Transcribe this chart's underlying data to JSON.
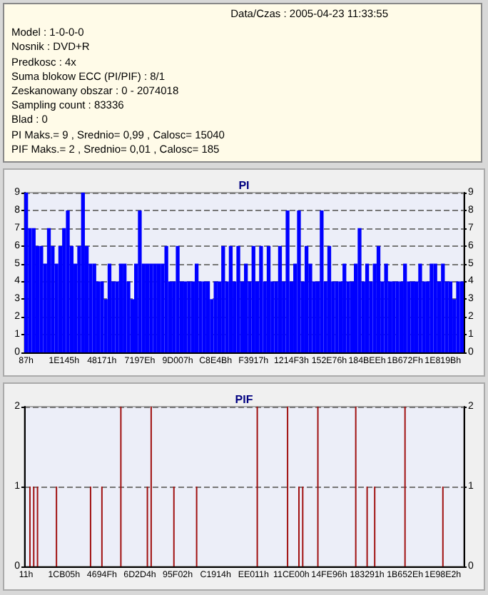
{
  "chart_data": [
    {
      "type": "other",
      "annotations": [
        "Data/Czas : 2005-04-23 11:33:55",
        "Model : 1-0-0-0",
        "Nosnik : DVD+R",
        "Predkosc : 4x",
        "Suma blokow ECC (PI/PIF) : 8/1",
        "Zeskanowany obszar : 0 - 2074018",
        "Sampling count : 83336",
        "Blad : 0",
        "PI Maks.= 9 , Srednio= 0,99 , Calosc= 15040",
        "PIF Maks.= 2 , Srednio= 0,01 , Calosc= 185"
      ]
    },
    {
      "type": "bar",
      "title": "PI",
      "color": "#0000ff",
      "categories": [
        "87h",
        null,
        null,
        null,
        null,
        null,
        null,
        null,
        null,
        null,
        "1E145h",
        null,
        null,
        null,
        null,
        null,
        null,
        null,
        null,
        null,
        "48171h",
        null,
        null,
        null,
        null,
        null,
        null,
        null,
        null,
        null,
        "7197Eh",
        null,
        null,
        null,
        null,
        null,
        null,
        null,
        null,
        null,
        "9D007h",
        null,
        null,
        null,
        null,
        null,
        null,
        null,
        null,
        null,
        "C8E4Bh",
        null,
        null,
        null,
        null,
        null,
        null,
        null,
        null,
        null,
        "F3917h",
        null,
        null,
        null,
        null,
        null,
        null,
        null,
        null,
        null,
        "1214F3h",
        null,
        null,
        null,
        null,
        null,
        null,
        null,
        null,
        null,
        "152E76h",
        null,
        null,
        null,
        null,
        null,
        null,
        null,
        null,
        null,
        "184BEEh",
        null,
        null,
        null,
        null,
        null,
        null,
        null,
        null,
        null,
        "1B672Fh",
        null,
        null,
        null,
        null,
        null,
        null,
        null,
        null,
        null,
        "1E819Bh",
        null,
        null,
        null,
        null,
        null
      ],
      "values": [
        9,
        7,
        7,
        6,
        6,
        5,
        7,
        6,
        5,
        6,
        7,
        8,
        6,
        5,
        6,
        9,
        6,
        5,
        5,
        4,
        4,
        3,
        5,
        4,
        4,
        5,
        5,
        4,
        3,
        5,
        8,
        5,
        5,
        5,
        5,
        5,
        5,
        6,
        4,
        4,
        6,
        4,
        4,
        4,
        4,
        5,
        4,
        4,
        4,
        3,
        4,
        4,
        6,
        4,
        6,
        4,
        6,
        4,
        5,
        4,
        6,
        4,
        6,
        4,
        6,
        4,
        4,
        6,
        4,
        8,
        4,
        5,
        8,
        4,
        6,
        5,
        4,
        4,
        8,
        4,
        6,
        4,
        4,
        4,
        5,
        4,
        4,
        5,
        7,
        4,
        5,
        4,
        5,
        6,
        4,
        5,
        4,
        4,
        4,
        4,
        5,
        4,
        4,
        4,
        5,
        4,
        4,
        5,
        5,
        4,
        5,
        4,
        4,
        3,
        4,
        4
      ],
      "ylim": [
        0,
        9
      ],
      "yticks": [
        0,
        1,
        2,
        3,
        4,
        5,
        6,
        7,
        8,
        9
      ],
      "y2lim": [
        0,
        9
      ],
      "y2ticks": [
        0,
        1,
        2,
        3,
        4,
        5,
        6,
        7,
        8,
        9
      ],
      "grid": "y"
    },
    {
      "type": "bar",
      "title": "PIF",
      "color": "#a01010",
      "categories": [
        "11h",
        null,
        null,
        null,
        null,
        null,
        null,
        null,
        null,
        null,
        "1CB05h",
        null,
        null,
        null,
        null,
        null,
        null,
        null,
        null,
        null,
        "4694Fh",
        null,
        null,
        null,
        null,
        null,
        null,
        null,
        null,
        null,
        "6D2D4h",
        null,
        null,
        null,
        null,
        null,
        null,
        null,
        null,
        null,
        "95F02h",
        null,
        null,
        null,
        null,
        null,
        null,
        null,
        null,
        null,
        "C1914h",
        null,
        null,
        null,
        null,
        null,
        null,
        null,
        null,
        null,
        "EE011h",
        null,
        null,
        null,
        null,
        null,
        null,
        null,
        null,
        null,
        "11CE00h",
        null,
        null,
        null,
        null,
        null,
        null,
        null,
        null,
        null,
        "14FE96h",
        null,
        null,
        null,
        null,
        null,
        null,
        null,
        null,
        null,
        "183291h",
        null,
        null,
        null,
        null,
        null,
        null,
        null,
        null,
        null,
        "1B652Eh",
        null,
        null,
        null,
        null,
        null,
        null,
        null,
        null,
        null,
        "1E98E2h",
        null,
        null,
        null,
        null,
        null
      ],
      "values": [
        0,
        1,
        1,
        1,
        0,
        0,
        0,
        0,
        1,
        0,
        0,
        0,
        0,
        0,
        0,
        0,
        0,
        1,
        0,
        0,
        1,
        0,
        0,
        0,
        0,
        2,
        0,
        0,
        0,
        0,
        0,
        0,
        1,
        2,
        0,
        0,
        0,
        0,
        0,
        1,
        0,
        0,
        0,
        0,
        0,
        1,
        0,
        0,
        0,
        0,
        0,
        0,
        0,
        0,
        0,
        0,
        0,
        0,
        0,
        0,
        0,
        2,
        0,
        0,
        0,
        0,
        0,
        0,
        0,
        2,
        0,
        0,
        1,
        1,
        0,
        0,
        0,
        2,
        0,
        0,
        0,
        0,
        0,
        0,
        0,
        0,
        0,
        2,
        0,
        0,
        1,
        0,
        1,
        0,
        0,
        0,
        0,
        0,
        0,
        0,
        2,
        0,
        0,
        0,
        0,
        0,
        0,
        0,
        0,
        0,
        1,
        0,
        0,
        0,
        0,
        0
      ],
      "ylim": [
        0,
        2
      ],
      "yticks": [
        0,
        1,
        2
      ],
      "y2lim": [
        0,
        2
      ],
      "y2ticks": [
        0,
        1,
        2
      ],
      "grid": "y"
    }
  ]
}
